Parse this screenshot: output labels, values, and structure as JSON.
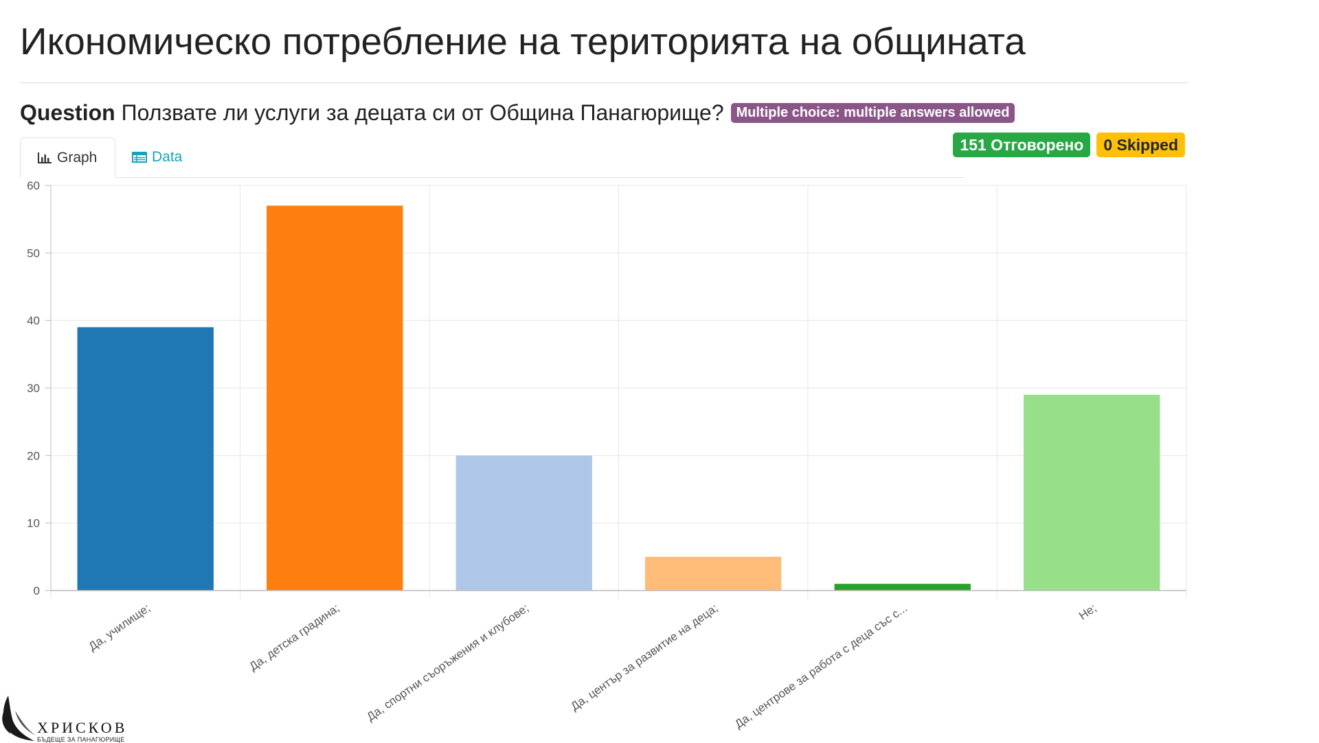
{
  "header": {
    "title": "Икономическо потребление на територията на общината"
  },
  "question": {
    "label": "Question",
    "text": "Ползвате ли услуги за децата си от Община Панагюрище?",
    "type_badge": "Multiple choice: multiple answers allowed"
  },
  "stats": {
    "answered": "151 Отговорено",
    "skipped": "0 Skipped"
  },
  "tabs": {
    "graph": "Graph",
    "data": "Data"
  },
  "logo": {
    "name": "ХРИСКОВ",
    "tagline": "БЪДЕЩЕ ЗА ПАНАГЮРИЩЕ"
  },
  "colors": {
    "type_badge": "#8a5687",
    "answered_badge": "#28a745",
    "skipped_badge": "#ffc107",
    "data_tab": "#17a2b8"
  },
  "chart_data": {
    "type": "bar",
    "title": "",
    "xlabel": "",
    "ylabel": "",
    "ylim": [
      0,
      60
    ],
    "yticks": [
      0,
      10,
      20,
      30,
      40,
      50,
      60
    ],
    "grid": true,
    "categories": [
      "Да, училище;",
      "Да, детска градина;",
      "Да, спортни съоръжения и клубове;",
      "Да, център за развитие на деца;",
      "Да, центрове за работа с деца със с...",
      "Не;"
    ],
    "values": [
      39,
      57,
      20,
      5,
      1,
      29
    ],
    "colors": [
      "#1f77b4",
      "#ff7f0e",
      "#aec7e8",
      "#ffbb78",
      "#2ca02c",
      "#98df8a"
    ]
  }
}
